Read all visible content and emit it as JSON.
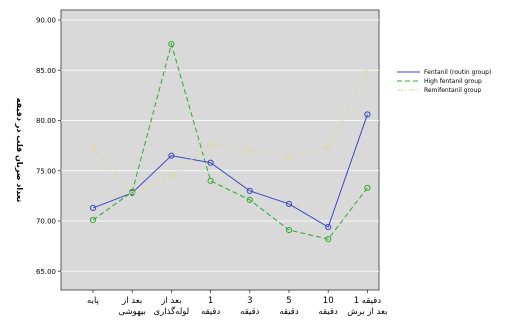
{
  "chart_data": {
    "type": "line",
    "title": "",
    "xlabel": "",
    "ylabel": "تعداد ضربان قلب در دقیقه",
    "ylim": [
      65,
      90
    ],
    "yticks": [
      "65.00",
      "70.00",
      "75.00",
      "80.00",
      "85.00",
      "90.00"
    ],
    "yticks_values": [
      65,
      70,
      75,
      80,
      85,
      90
    ],
    "categories": [
      [
        "پایه"
      ],
      [
        "بعد از",
        "بیهوشی"
      ],
      [
        "بعد از",
        "لوله‌گذاری"
      ],
      [
        "1",
        "دقیقه"
      ],
      [
        "3",
        "دقیقه"
      ],
      [
        "5",
        "دقیقه"
      ],
      [
        "10",
        "دقیقه"
      ],
      [
        "دقیقه 1",
        "بعد از برش"
      ]
    ],
    "series": [
      {
        "name": "Fentanil (routin group)",
        "color": "#3b46c4",
        "dash": "solid",
        "values": [
          71.3,
          72.8,
          76.5,
          75.8,
          73.0,
          71.7,
          69.4,
          80.6
        ]
      },
      {
        "name": "High fentanil group",
        "color": "#2eaa2e",
        "dash": "dashed",
        "values": [
          70.1,
          72.9,
          87.6,
          74.0,
          72.1,
          69.1,
          68.2,
          73.3
        ]
      },
      {
        "name": "Remifentanil group",
        "color": "#dcd7a2",
        "dash": "dashdot",
        "values": [
          77.3,
          72.7,
          74.5,
          77.6,
          77.1,
          76.3,
          77.4,
          84.7
        ]
      }
    ],
    "grid": true,
    "legend": "right"
  }
}
